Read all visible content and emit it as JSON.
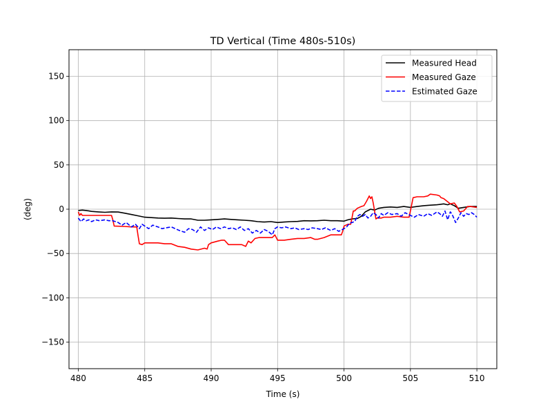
{
  "chart_data": {
    "type": "line",
    "title": "TD Vertical (Time 480s-510s)",
    "xlabel": "Time (s)",
    "ylabel": "(deg)",
    "xlim": [
      479.3,
      511.5
    ],
    "ylim": [
      -180,
      180
    ],
    "xticks": [
      480,
      485,
      490,
      495,
      500,
      505,
      510
    ],
    "yticks": [
      -150,
      -100,
      -50,
      0,
      50,
      100,
      150
    ],
    "xtick_labels": [
      "480",
      "485",
      "490",
      "495",
      "500",
      "505",
      "510"
    ],
    "ytick_labels": [
      "−150",
      "−100",
      "−50",
      "0",
      "50",
      "100",
      "150"
    ],
    "grid": true,
    "legend_position": "top-right",
    "series": [
      {
        "name": "Measured Head",
        "color": "#000000",
        "dash": "solid",
        "x": [
          480.0,
          480.3,
          480.6,
          481.0,
          481.5,
          482.0,
          482.5,
          483.0,
          483.5,
          484.0,
          484.5,
          485.0,
          485.5,
          486.0,
          486.5,
          487.0,
          487.5,
          488.0,
          488.5,
          489.0,
          489.5,
          490.0,
          490.5,
          491.0,
          491.5,
          492.0,
          492.5,
          493.0,
          493.5,
          494.0,
          494.5,
          495.0,
          495.5,
          496.0,
          496.5,
          497.0,
          497.5,
          498.0,
          498.5,
          499.0,
          499.5,
          500.0,
          500.3,
          500.6,
          501.0,
          501.3,
          501.6,
          502.0,
          502.3,
          502.6,
          503.0,
          503.5,
          504.0,
          504.5,
          505.0,
          505.5,
          506.0,
          506.5,
          507.0,
          507.5,
          507.8,
          508.0,
          508.3,
          508.6,
          509.0,
          509.5,
          510.0
        ],
        "values": [
          -1.5,
          -1.0,
          -1.5,
          -2.5,
          -3.0,
          -3.5,
          -3.0,
          -3.2,
          -4.5,
          -6.0,
          -7.5,
          -9.0,
          -9.5,
          -10.0,
          -10.2,
          -10.0,
          -10.5,
          -11.0,
          -11.0,
          -12.5,
          -12.5,
          -12.0,
          -11.5,
          -11.0,
          -11.5,
          -12.0,
          -12.5,
          -13.0,
          -14.0,
          -14.5,
          -14.0,
          -15.0,
          -14.5,
          -14.0,
          -13.8,
          -13.0,
          -13.2,
          -13.0,
          -12.5,
          -13.0,
          -13.0,
          -13.5,
          -12.0,
          -11.0,
          -10.5,
          -8.0,
          -3.0,
          0.0,
          -1.0,
          1.0,
          2.0,
          2.5,
          2.0,
          3.0,
          2.0,
          3.0,
          4.0,
          4.5,
          5.0,
          6.0,
          5.0,
          6.0,
          4.0,
          1.0,
          2.0,
          3.0,
          3.0
        ]
      },
      {
        "name": "Measured Gaze",
        "color": "#ff0000",
        "dash": "solid",
        "x": [
          480.0,
          480.1,
          480.2,
          480.3,
          480.5,
          481.0,
          481.5,
          482.0,
          482.5,
          482.6,
          482.7,
          483.5,
          484.0,
          484.4,
          484.5,
          484.6,
          484.8,
          485.0,
          485.5,
          486.0,
          486.5,
          487.0,
          487.5,
          488.0,
          488.5,
          489.0,
          489.5,
          489.7,
          489.8,
          490.0,
          490.5,
          490.8,
          491.0,
          491.3,
          491.5,
          492.0,
          492.3,
          492.6,
          492.8,
          493.0,
          493.3,
          493.6,
          494.0,
          494.3,
          494.6,
          494.8,
          495.0,
          495.5,
          496.0,
          496.5,
          497.0,
          497.5,
          497.8,
          498.0,
          498.5,
          499.0,
          499.5,
          499.8,
          499.9,
          500.0,
          500.3,
          500.5,
          500.6,
          500.7,
          500.8,
          501.0,
          501.3,
          501.5,
          501.7,
          501.9,
          502.0,
          502.1,
          502.2,
          502.4,
          502.5,
          502.8,
          503.0,
          503.5,
          504.0,
          504.5,
          504.9,
          505.0,
          505.2,
          505.5,
          506.0,
          506.3,
          506.5,
          507.0,
          507.2,
          507.3,
          507.5,
          508.0,
          508.3,
          508.5,
          508.7,
          509.0,
          509.3,
          509.5,
          510.0
        ],
        "values": [
          -3,
          -7,
          -5,
          -7,
          -7,
          -7,
          -7,
          -7,
          -7,
          -12,
          -19,
          -19.5,
          -20,
          -20,
          -30,
          -39,
          -40,
          -38,
          -38,
          -38,
          -39,
          -39,
          -42,
          -43,
          -45,
          -46,
          -44,
          -45,
          -40,
          -38,
          -36,
          -35,
          -35,
          -40,
          -40,
          -40,
          -40,
          -42,
          -36,
          -38,
          -33,
          -32,
          -32,
          -32,
          -32,
          -29,
          -35,
          -35,
          -34,
          -33,
          -33,
          -32,
          -34,
          -34,
          -32,
          -29,
          -29,
          -29,
          -25,
          -19,
          -17,
          -17,
          -10,
          -2,
          -2,
          1,
          3,
          4,
          9,
          15,
          12,
          14,
          7,
          -11,
          -10,
          -10,
          -9,
          -9,
          -8,
          -9,
          -9,
          -2,
          13,
          14,
          14,
          15,
          17,
          16,
          15,
          13,
          12,
          6,
          7,
          3,
          -3,
          -2,
          3,
          3,
          2
        ]
      },
      {
        "name": "Estimated Gaze",
        "color": "#0000ff",
        "dash": "dashed",
        "x": [
          480.0,
          480.2,
          480.4,
          480.6,
          480.8,
          481.0,
          481.3,
          481.6,
          482.0,
          482.3,
          482.6,
          483.0,
          483.3,
          483.6,
          484.0,
          484.3,
          484.6,
          484.8,
          485.0,
          485.3,
          485.6,
          486.0,
          486.3,
          486.6,
          487.0,
          487.3,
          487.6,
          488.0,
          488.3,
          488.6,
          488.9,
          489.2,
          489.5,
          489.8,
          490.1,
          490.4,
          490.7,
          491.0,
          491.3,
          491.6,
          491.9,
          492.2,
          492.5,
          492.8,
          493.1,
          493.4,
          493.7,
          494.0,
          494.3,
          494.6,
          494.8,
          495.0,
          495.3,
          495.6,
          496.0,
          496.3,
          496.6,
          497.0,
          497.3,
          497.6,
          498.0,
          498.3,
          498.6,
          499.0,
          499.3,
          499.6,
          500.0,
          500.2,
          500.4,
          500.6,
          500.8,
          501.0,
          501.2,
          501.4,
          501.6,
          501.8,
          502.0,
          502.2,
          502.4,
          502.6,
          502.8,
          503.0,
          503.3,
          503.6,
          504.0,
          504.3,
          504.6,
          505.0,
          505.3,
          505.6,
          506.0,
          506.3,
          506.6,
          507.0,
          507.2,
          507.4,
          507.6,
          507.8,
          508.0,
          508.1,
          508.2,
          508.4,
          508.6,
          508.8,
          509.0,
          509.2,
          509.4,
          509.6,
          509.8,
          510.0
        ],
        "values": [
          -10,
          -14,
          -11,
          -13,
          -12,
          -14,
          -12,
          -13,
          -12,
          -13,
          -13,
          -15,
          -18,
          -15,
          -20,
          -17,
          -22,
          -17,
          -19,
          -22,
          -18,
          -20,
          -22,
          -21,
          -20,
          -22,
          -24,
          -26,
          -22,
          -23,
          -26,
          -20,
          -24,
          -21,
          -23,
          -20,
          -22,
          -20,
          -22,
          -21,
          -23,
          -20,
          -24,
          -22,
          -27,
          -24,
          -27,
          -23,
          -25,
          -29,
          -22,
          -20,
          -21,
          -20,
          -22,
          -21,
          -23,
          -22,
          -23,
          -21,
          -22,
          -23,
          -21,
          -24,
          -22,
          -25,
          -22,
          -20,
          -16,
          -15,
          -14,
          -8,
          -6,
          -8,
          -6,
          -10,
          -8,
          -4,
          -6,
          -10,
          -5,
          -7,
          -4,
          -6,
          -5,
          -8,
          -4,
          -7,
          -9,
          -6,
          -8,
          -5,
          -7,
          -3,
          -5,
          -8,
          -2,
          -12,
          -3,
          -5,
          -8,
          -15,
          -10,
          -4,
          -8,
          -5,
          -6,
          -4,
          -6,
          -9
        ]
      }
    ]
  }
}
